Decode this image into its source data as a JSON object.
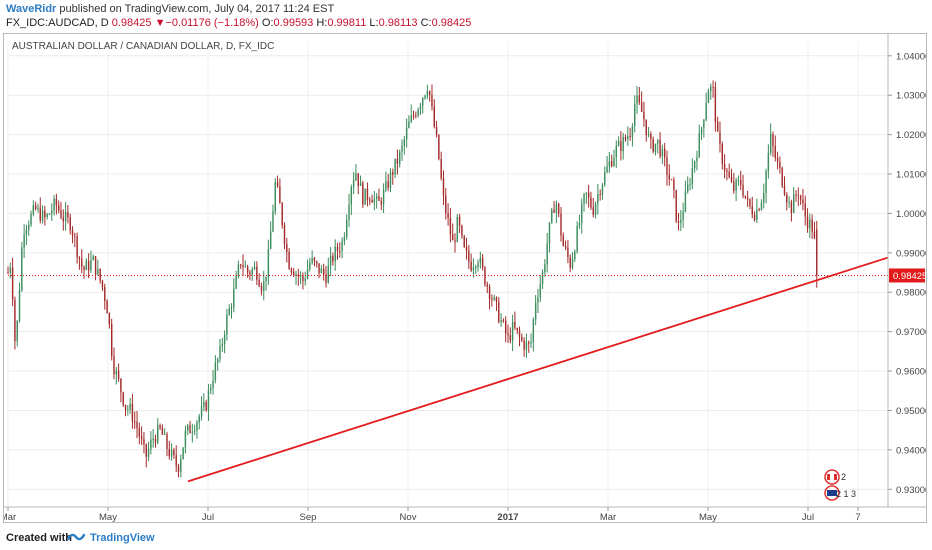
{
  "header": {
    "user": "WaveRidr",
    "published_text": "published on TradingView.com, July 04, 2017 11:24 EST",
    "symbol": "FX_IDC:AUDCAD, D",
    "last": "0.98425",
    "change_arrow": "▼",
    "change": "−0.01176 (−1.18%)",
    "o_label": "O:",
    "o": "0.99593",
    "h_label": "H:",
    "h": "0.99811",
    "l_label": "L:",
    "l": "0.98113",
    "c_label": "C:",
    "c": "0.98425"
  },
  "footer": {
    "created_with": "Created with",
    "brand": "TradingView"
  },
  "colors": {
    "up": "#3b8d5c",
    "down": "#a52a2a",
    "trendline": "#e31a1c",
    "last_price": "#e31a1c",
    "brand": "#2b7dc4"
  },
  "chart_data": {
    "type": "candlestick",
    "title": "AUSTRALIAN DOLLAR / CANADIAN DOLLAR, D, FX_IDC",
    "y_ticks": [
      1.04,
      1.03,
      1.02,
      1.01,
      1.0,
      0.99,
      0.98,
      0.97,
      0.96,
      0.95,
      0.94,
      0.93
    ],
    "y_tick_labels": [
      "1.04000",
      "1.03000",
      "1.02000",
      "1.01000",
      "1.00000",
      "0.99000",
      "0.98000",
      "0.97000",
      "0.96000",
      "0.95000",
      "0.94000",
      "0.93000"
    ],
    "ylim": [
      0.9255,
      1.0435
    ],
    "x_labels": [
      "Mar",
      "May",
      "Jul",
      "Sep",
      "Nov",
      "2017",
      "Mar",
      "May",
      "Jul",
      "7"
    ],
    "x_label_months": [
      0,
      2,
      4,
      6,
      8,
      10,
      12,
      14,
      16,
      17
    ],
    "xlim_months": [
      0,
      17.6
    ],
    "last_price": 0.98425,
    "last_price_label": "0.98425",
    "trendline": {
      "x_months": [
        3.6,
        17.6
      ],
      "y": [
        0.932,
        0.9888
      ]
    },
    "close_path": [
      [
        0.0,
        0.985
      ],
      [
        0.06,
        0.988
      ],
      [
        0.15,
        0.965
      ],
      [
        0.3,
        0.996
      ],
      [
        0.55,
        1.001
      ],
      [
        0.75,
        0.9985
      ],
      [
        0.95,
        1.0025
      ],
      [
        1.1,
        0.999
      ],
      [
        1.25,
        0.9975
      ],
      [
        1.4,
        0.99
      ],
      [
        1.5,
        0.9855
      ],
      [
        1.7,
        0.988
      ],
      [
        1.9,
        0.981
      ],
      [
        2.0,
        0.975
      ],
      [
        2.1,
        0.962
      ],
      [
        2.25,
        0.9555
      ],
      [
        2.35,
        0.951
      ],
      [
        2.45,
        0.95
      ],
      [
        2.6,
        0.945
      ],
      [
        2.75,
        0.938
      ],
      [
        2.9,
        0.943
      ],
      [
        3.05,
        0.945
      ],
      [
        3.2,
        0.94
      ],
      [
        3.4,
        0.9355
      ],
      [
        3.55,
        0.944
      ],
      [
        3.75,
        0.947
      ],
      [
        3.95,
        0.951
      ],
      [
        4.1,
        0.959
      ],
      [
        4.25,
        0.965
      ],
      [
        4.35,
        0.972
      ],
      [
        4.5,
        0.979
      ],
      [
        4.65,
        0.988
      ],
      [
        4.8,
        0.985
      ],
      [
        4.95,
        0.986
      ],
      [
        5.1,
        0.981
      ],
      [
        5.2,
        0.988
      ],
      [
        5.35,
        1.008
      ],
      [
        5.45,
        1.001
      ],
      [
        5.6,
        0.988
      ],
      [
        5.75,
        0.985
      ],
      [
        5.9,
        0.983
      ],
      [
        6.05,
        0.988
      ],
      [
        6.2,
        0.986
      ],
      [
        6.35,
        0.984
      ],
      [
        6.5,
        0.989
      ],
      [
        6.7,
        0.993
      ],
      [
        6.85,
        1.007
      ],
      [
        6.95,
        1.011
      ],
      [
        7.1,
        1.004
      ],
      [
        7.25,
        1.005
      ],
      [
        7.4,
        1.002
      ],
      [
        7.55,
        1.006
      ],
      [
        7.7,
        1.011
      ],
      [
        7.85,
        1.015
      ],
      [
        8.0,
        1.022
      ],
      [
        8.15,
        1.026
      ],
      [
        8.3,
        1.03
      ],
      [
        8.4,
        1.033
      ],
      [
        8.5,
        1.024
      ],
      [
        8.6,
        1.016
      ],
      [
        8.7,
        1.004
      ],
      [
        8.8,
        0.998
      ],
      [
        8.9,
        0.992
      ],
      [
        9.0,
        0.998
      ],
      [
        9.1,
        0.991
      ],
      [
        9.25,
        0.987
      ],
      [
        9.4,
        0.989
      ],
      [
        9.55,
        0.983
      ],
      [
        9.7,
        0.978
      ],
      [
        9.85,
        0.973
      ],
      [
        10.0,
        0.968
      ],
      [
        10.1,
        0.971
      ],
      [
        10.3,
        0.967
      ],
      [
        10.45,
        0.966
      ],
      [
        10.55,
        0.978
      ],
      [
        10.7,
        0.985
      ],
      [
        10.8,
        0.994
      ],
      [
        10.95,
        1.004
      ],
      [
        11.1,
        0.992
      ],
      [
        11.25,
        0.987
      ],
      [
        11.4,
        0.996
      ],
      [
        11.55,
        1.005
      ],
      [
        11.7,
        1.001
      ],
      [
        11.85,
        1.007
      ],
      [
        12.0,
        1.012
      ],
      [
        12.15,
        1.016
      ],
      [
        12.3,
        1.018
      ],
      [
        12.45,
        1.021
      ],
      [
        12.55,
        1.029
      ],
      [
        12.7,
        1.025
      ],
      [
        12.85,
        1.017
      ],
      [
        13.0,
        1.018
      ],
      [
        13.15,
        1.012
      ],
      [
        13.3,
        1.006
      ],
      [
        13.4,
        0.996
      ],
      [
        13.55,
        1.004
      ],
      [
        13.7,
        1.012
      ],
      [
        13.85,
        1.02
      ],
      [
        14.0,
        1.032
      ],
      [
        14.1,
        1.031
      ],
      [
        14.2,
        1.018
      ],
      [
        14.35,
        1.011
      ],
      [
        14.5,
        1.006
      ],
      [
        14.65,
        1.008
      ],
      [
        14.8,
        1.002
      ],
      [
        14.95,
        1.0
      ],
      [
        15.1,
        1.005
      ],
      [
        15.25,
        1.019
      ],
      [
        15.35,
        1.014
      ],
      [
        15.5,
        1.008
      ],
      [
        15.65,
        1.001
      ],
      [
        15.8,
        1.006
      ],
      [
        15.95,
        0.999
      ],
      [
        16.1,
        0.996
      ],
      [
        16.2,
        0.98425
      ]
    ]
  }
}
